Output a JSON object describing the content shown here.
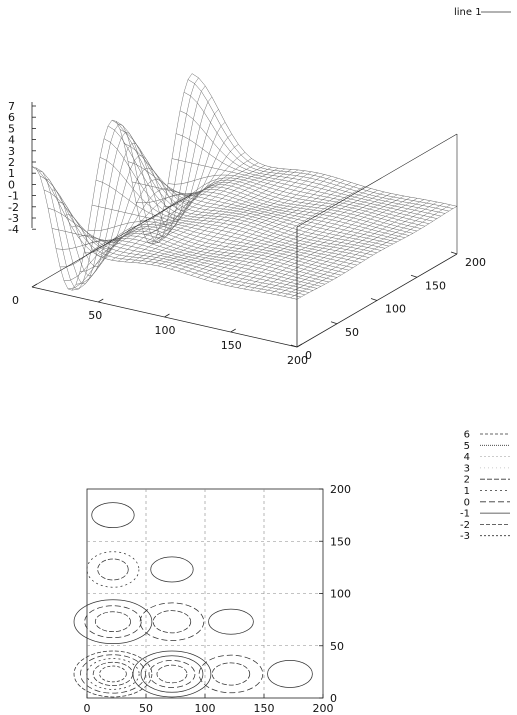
{
  "chart_data": [
    {
      "type": "surface",
      "legend": {
        "entries": [
          {
            "label": "line 1"
          }
        ],
        "placement": "top-right"
      },
      "x_ticks": [
        "0",
        "50",
        "100",
        "150",
        "200"
      ],
      "y_ticks": [
        "0",
        "50",
        "100",
        "150",
        "200"
      ],
      "z_ticks": [
        "7",
        "6",
        "5",
        "4",
        "3",
        "2",
        "1",
        "0",
        "-1",
        "-2",
        "-3",
        "-4"
      ],
      "xlim": [
        0,
        200
      ],
      "ylim": [
        0,
        200
      ],
      "zlim": [
        -4,
        7
      ],
      "grid": false,
      "surface_peak": {
        "x": 0,
        "y": 30,
        "z": 6.8
      },
      "surface_trough": {
        "x": 50,
        "y": 20,
        "z": -4
      }
    },
    {
      "type": "contour",
      "legend": {
        "placement": "top-right",
        "entries": [
          {
            "label": "6",
            "dash": "3,2"
          },
          {
            "label": "5",
            "dash": "1,1"
          },
          {
            "label": "4",
            "dash": "2,2",
            "muted": true
          },
          {
            "label": "3",
            "dash": "1,3",
            "muted": true
          },
          {
            "label": "2",
            "dash": "5,2"
          },
          {
            "label": "1",
            "dash": "2,3"
          },
          {
            "label": "0",
            "dash": "6,3"
          },
          {
            "label": "-1",
            "dash": ""
          },
          {
            "label": "-2",
            "dash": "4,2"
          },
          {
            "label": "-3",
            "dash": "2,2"
          }
        ]
      },
      "x_ticks": [
        "0",
        "50",
        "100",
        "150",
        "200"
      ],
      "y_ticks": [
        "0",
        "50",
        "100",
        "150",
        "200"
      ],
      "xlim": [
        0,
        200
      ],
      "ylim": [
        0,
        200
      ],
      "grid": true,
      "blobs": [
        {
          "cx": 22,
          "cy": 175,
          "rx": 18,
          "ry": 12,
          "levels": [
            -1
          ]
        },
        {
          "cx": 22,
          "cy": 123,
          "rx": 22,
          "ry": 17,
          "levels": [
            1,
            2
          ]
        },
        {
          "cx": 72,
          "cy": 123,
          "rx": 18,
          "ry": 12,
          "levels": [
            -1
          ]
        },
        {
          "cx": 22,
          "cy": 73,
          "rx": 33,
          "ry": 21,
          "levels": [
            -1,
            0,
            2
          ]
        },
        {
          "cx": 72,
          "cy": 73,
          "rx": 27,
          "ry": 18,
          "levels": [
            0,
            2
          ]
        },
        {
          "cx": 122,
          "cy": 73,
          "rx": 19,
          "ry": 12,
          "levels": [
            -1
          ]
        },
        {
          "cx": 22,
          "cy": 23,
          "rx": 33,
          "ry": 22,
          "levels": [
            -2,
            0,
            1,
            2,
            6
          ]
        },
        {
          "cx": 72,
          "cy": 23,
          "rx": 33,
          "ry": 22,
          "levels": [
            -1,
            -1,
            0,
            2
          ]
        },
        {
          "cx": 122,
          "cy": 23,
          "rx": 27,
          "ry": 18,
          "levels": [
            0,
            2
          ]
        },
        {
          "cx": 172,
          "cy": 23,
          "rx": 19,
          "ry": 13,
          "levels": [
            -1
          ]
        }
      ]
    }
  ]
}
